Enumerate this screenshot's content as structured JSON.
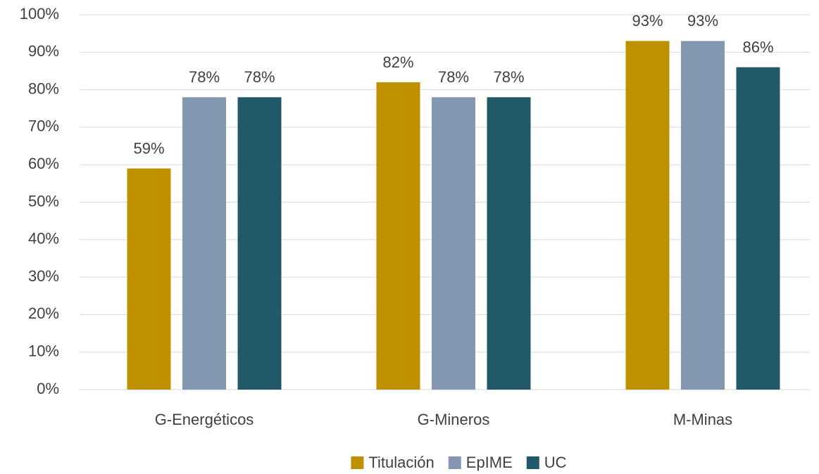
{
  "chart_data": {
    "type": "bar",
    "categories": [
      "G-Energéticos",
      "G-Mineros",
      "M-Minas"
    ],
    "series": [
      {
        "name": "Titulación",
        "color": "#bf9000",
        "values": [
          59,
          82,
          93
        ],
        "value_labels": [
          "59%",
          "82%",
          "93%"
        ]
      },
      {
        "name": "EpIME",
        "color": "#8497b0",
        "values": [
          78,
          78,
          93
        ],
        "value_labels": [
          "78%",
          "78%",
          "93%"
        ]
      },
      {
        "name": "UC",
        "color": "#215968",
        "values": [
          78,
          78,
          86
        ],
        "value_labels": [
          "78%",
          "78%",
          "86%"
        ]
      }
    ],
    "ylim": [
      0,
      100
    ],
    "yticks": [
      {
        "value": 0,
        "label": "0%"
      },
      {
        "value": 10,
        "label": "10%"
      },
      {
        "value": 20,
        "label": "20%"
      },
      {
        "value": 30,
        "label": "30%"
      },
      {
        "value": 40,
        "label": "40%"
      },
      {
        "value": 50,
        "label": "50%"
      },
      {
        "value": 60,
        "label": "60%"
      },
      {
        "value": 70,
        "label": "70%"
      },
      {
        "value": 80,
        "label": "80%"
      },
      {
        "value": 90,
        "label": "90%"
      },
      {
        "value": 100,
        "label": "100%"
      }
    ],
    "grid": true,
    "legend": "bottom"
  }
}
